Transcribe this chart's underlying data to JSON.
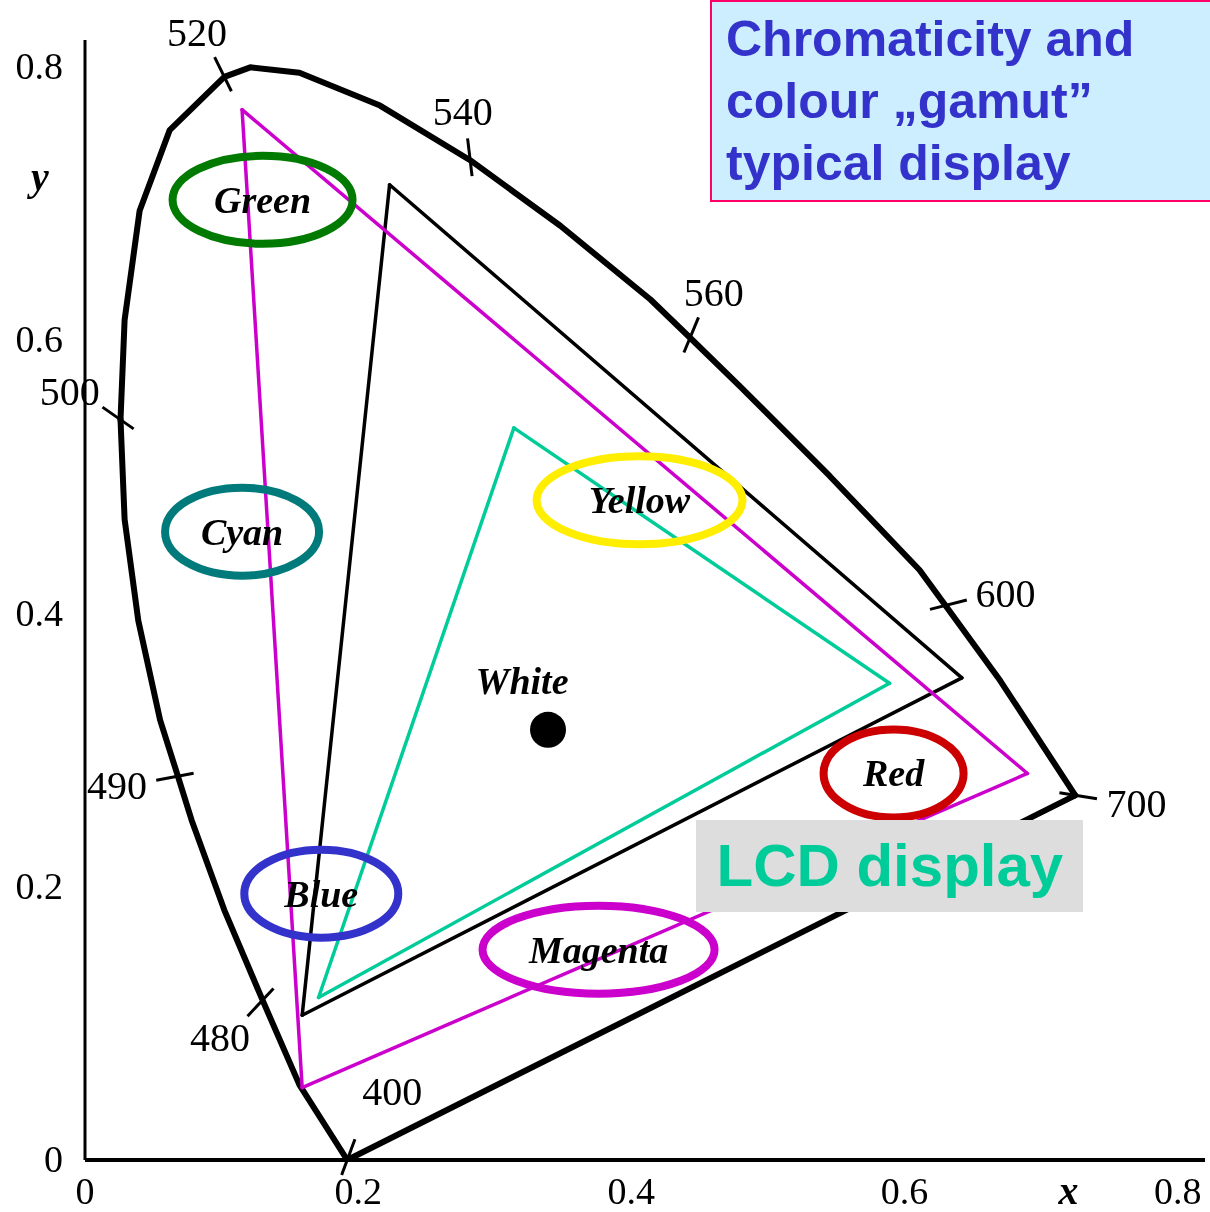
{
  "chart_data": {
    "type": "line",
    "title": "Chromaticity and colour „gamut”",
    "subtitle": "typical display",
    "xlabel": "x",
    "ylabel": "y",
    "xlim": [
      0,
      0.82
    ],
    "ylim": [
      0,
      0.82
    ],
    "xticks": [
      0,
      0.2,
      0.4,
      0.6,
      0.8
    ],
    "yticks": [
      0,
      0.2,
      0.4,
      0.6,
      0.8
    ],
    "legend": "bottom right",
    "line_style": "solid",
    "series": [
      {
        "color": "#000000",
        "x": [
          0.026,
          0.029,
          0.039,
          0.055,
          0.068,
          0.078,
          0.102,
          0.13,
          0.157,
          0.192
        ],
        "values": [
          0.542,
          0.469,
          0.395,
          0.322,
          0.281,
          0.249,
          0.183,
          0.117,
          0.055,
          0
        ]
      },
      {
        "color": "#000000",
        "x": [
          0.026,
          0.029,
          0.04,
          0.062,
          0.102,
          0.121,
          0.157,
          0.216,
          0.282,
          0.348,
          0.414,
          0.443,
          0.479,
          0.545,
          0.611,
          0.63,
          0.67,
          0.725
        ],
        "values": [
          0.542,
          0.615,
          0.695,
          0.754,
          0.793,
          0.8,
          0.796,
          0.772,
          0.732,
          0.684,
          0.63,
          0.602,
          0.567,
          0.501,
          0.432,
          0.406,
          0.351,
          0.267
        ]
      },
      {
        "color": "#000000",
        "x": [
          0.192,
          0.725
        ],
        "values": [
          0,
          0.267
        ]
      },
      {
        "color": "#000000",
        "x": [
          0.159,
          0.223
        ],
        "values": [
          0.106,
          0.714
        ]
      },
      {
        "color": "#000000",
        "x": [
          0.223,
          0.642
        ],
        "values": [
          0.714,
          0.353
        ]
      },
      {
        "color": "#000000",
        "x": [
          0.159,
          0.642
        ],
        "values": [
          0.106,
          0.353
        ]
      },
      {
        "color": "#cc00cc",
        "x": [
          0.115,
          0.159
        ],
        "values": [
          0.769,
          0.053
        ]
      },
      {
        "color": "#cc00cc",
        "x": [
          0.115,
          0.69
        ],
        "values": [
          0.769,
          0.283
        ]
      },
      {
        "color": "#cc00cc",
        "x": [
          0.159,
          0.69
        ],
        "values": [
          0.053,
          0.283
        ]
      },
      {
        "color": "#00cc99",
        "x": [
          0.171,
          0.314
        ],
        "values": [
          0.119,
          0.536
        ]
      },
      {
        "name": "LCD display",
        "color": "#00cc99",
        "x": [
          0.314,
          0.589
        ],
        "values": [
          0.536,
          0.349
        ]
      },
      {
        "color": "#00cc99",
        "x": [
          0.171,
          0.589
        ],
        "values": [
          0.119,
          0.349
        ]
      },
      {
        "type": "scatter",
        "marker": "circle",
        "color": "#000000",
        "x": [
          0.339
        ],
        "values": [
          0.315
        ]
      }
    ],
    "annotations": [
      {
        "text": "520",
        "x": 0.102,
        "y": 0.793
      },
      {
        "text": "540",
        "x": 0.282,
        "y": 0.732
      },
      {
        "text": "560",
        "x": 0.443,
        "y": 0.602
      },
      {
        "text": "500",
        "x": 0.026,
        "y": 0.542
      },
      {
        "text": "490",
        "x": 0.068,
        "y": 0.281
      },
      {
        "text": "480",
        "x": 0.13,
        "y": 0.117
      },
      {
        "text": "400",
        "x": 0.192,
        "y": 0
      },
      {
        "text": "600",
        "x": 0.63,
        "y": 0.406
      },
      {
        "text": "700",
        "x": 0.725,
        "y": 0.267
      },
      "Green",
      "Cyan",
      "Yellow",
      "Red",
      "Blue",
      "Magenta",
      "White"
    ]
  }
}
